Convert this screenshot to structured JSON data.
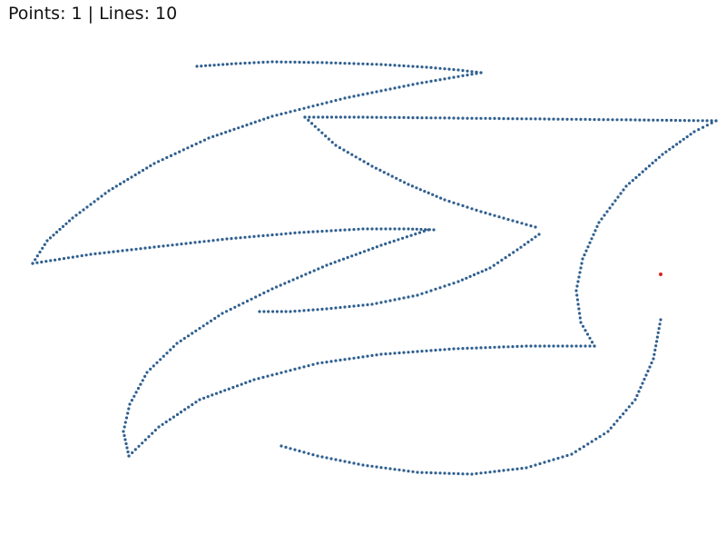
{
  "status": {
    "text": "Points: 1 | Lines: 10",
    "points_count": 1,
    "lines_count": 10
  },
  "colors": {
    "stroke_dots": "#2f5f8f",
    "point_marker": "#e02020",
    "background": "#ffffff"
  }
}
